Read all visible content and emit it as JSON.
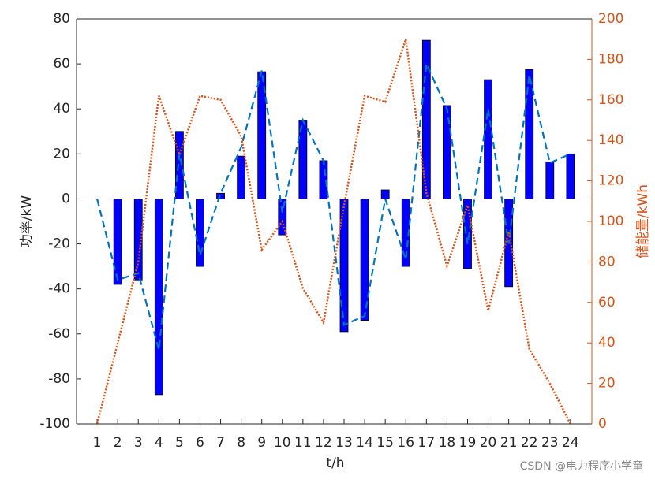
{
  "chart_data": {
    "type": "bar",
    "categories": [
      "1",
      "2",
      "3",
      "4",
      "5",
      "6",
      "7",
      "8",
      "9",
      "10",
      "11",
      "12",
      "13",
      "14",
      "15",
      "16",
      "17",
      "18",
      "19",
      "20",
      "21",
      "22",
      "23",
      "24"
    ],
    "series": [
      {
        "type": "bar",
        "color": "#0000ff",
        "values": [
          0,
          -38,
          -36,
          -87,
          30,
          -30,
          2.5,
          19,
          56.5,
          -16,
          35,
          17,
          -59,
          -54,
          4,
          -30,
          70.5,
          41.5,
          -31,
          53,
          -39,
          57.5,
          16.5,
          20
        ]
      },
      {
        "type": "line",
        "style": "dashed",
        "color": "#0072bd",
        "values": [
          0,
          -36,
          -33,
          -67,
          20,
          -25,
          2.5,
          23,
          57,
          -6,
          35,
          17,
          -56,
          -52,
          0,
          -27,
          60,
          40,
          -20,
          40,
          -20,
          55,
          16,
          20
        ]
      },
      {
        "type": "line",
        "style": "dotted",
        "color": "#d95319",
        "axis": "y2",
        "values": [
          0,
          40,
          80,
          162,
          133,
          162,
          160,
          142,
          86,
          100,
          67,
          50,
          108,
          162,
          159,
          190,
          114,
          78,
          108,
          56,
          95,
          37,
          20,
          0
        ]
      }
    ],
    "ylim": [
      -100,
      80
    ],
    "yticks": [
      -100,
      -80,
      -60,
      -40,
      -20,
      0,
      20,
      40,
      60,
      80
    ],
    "y2lim": [
      0,
      200
    ],
    "y2ticks": [
      0,
      20,
      40,
      60,
      80,
      100,
      120,
      140,
      160,
      180,
      200
    ],
    "xlabel": "t/h",
    "ylabel": "功率/kW",
    "y2label": "储能量/kWh",
    "y2color": "#d95319",
    "watermark": "CSDN @电力程序小学童"
  }
}
